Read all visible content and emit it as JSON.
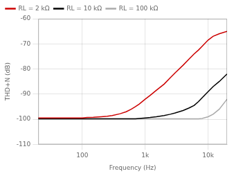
{
  "chart_data": {
    "type": "line",
    "log": "x",
    "xlabel": "Frequency (Hz)",
    "ylabel": "THD+N (dB)",
    "xlim": [
      20,
      20000
    ],
    "ylim": [
      -110,
      -60
    ],
    "xticks": [
      {
        "value": 100,
        "label": "100"
      },
      {
        "value": 1000,
        "label": "1k"
      },
      {
        "value": 10000,
        "label": "10k"
      }
    ],
    "yticks": [
      -110,
      -100,
      -90,
      -80,
      -70,
      -60
    ],
    "grid": true,
    "legend": "upper left",
    "x": [
      20,
      30,
      40,
      50,
      60,
      70,
      80,
      100,
      120,
      150,
      200,
      250,
      300,
      400,
      500,
      600,
      700,
      800,
      1000,
      1200,
      1500,
      2000,
      2500,
      3000,
      4000,
      5000,
      6000,
      7000,
      8000,
      10000,
      12000,
      15000,
      20000
    ],
    "series": [
      {
        "name": "RL = 2 kΩ",
        "color": "#cc0000",
        "values": [
          -99.5,
          -99.5,
          -99.5,
          -99.5,
          -99.5,
          -99.5,
          -99.5,
          -99.5,
          -99.3,
          -99.2,
          -99.0,
          -98.8,
          -98.5,
          -97.8,
          -97.0,
          -96.0,
          -95.0,
          -94.0,
          -92.0,
          -90.5,
          -88.5,
          -86.0,
          -83.5,
          -81.5,
          -78.5,
          -76.0,
          -74.0,
          -72.5,
          -71.0,
          -68.5,
          -67.0,
          -66.0,
          -65.0
        ]
      },
      {
        "name": "RL = 10 kΩ",
        "color": "#000000",
        "values": [
          -99.8,
          -99.8,
          -99.8,
          -99.8,
          -99.8,
          -99.8,
          -99.8,
          -99.8,
          -99.8,
          -99.8,
          -99.8,
          -99.8,
          -99.8,
          -99.8,
          -99.8,
          -99.8,
          -99.8,
          -99.7,
          -99.5,
          -99.3,
          -99.0,
          -98.5,
          -98.0,
          -97.5,
          -96.5,
          -95.5,
          -94.5,
          -93.0,
          -91.5,
          -89.0,
          -87.0,
          -85.0,
          -82.0
        ]
      },
      {
        "name": "RL = 100 kΩ",
        "color": "#aaaaaa",
        "values": [
          -99.8,
          -99.8,
          -99.8,
          -99.8,
          -99.8,
          -99.8,
          -99.8,
          -99.8,
          -99.8,
          -99.8,
          -99.8,
          -99.8,
          -99.8,
          -99.8,
          -99.8,
          -99.8,
          -99.8,
          -99.8,
          -99.8,
          -99.8,
          -99.8,
          -99.8,
          -99.8,
          -99.8,
          -99.8,
          -99.8,
          -99.8,
          -99.8,
          -99.7,
          -99.0,
          -98.0,
          -96.0,
          -92.0
        ]
      }
    ]
  }
}
